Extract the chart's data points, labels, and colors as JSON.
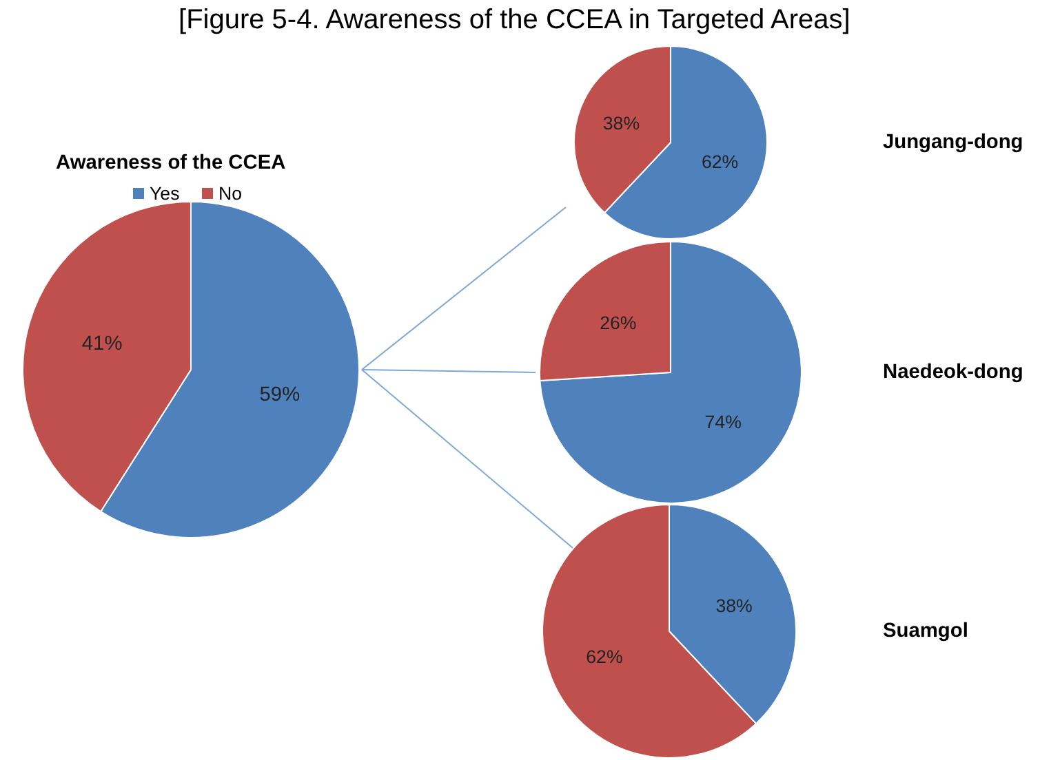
{
  "chart_data": [
    {
      "type": "pie",
      "title": "Awareness of the CCEA",
      "annotations": [
        "[Figure 5-4. Awareness of the CCEA in Targeted Areas]"
      ],
      "categories": [
        "Yes",
        "No"
      ],
      "values": [
        59,
        41
      ],
      "value_labels": [
        "59%",
        "41%"
      ],
      "colors": [
        "#4f81bd",
        "#c0504d"
      ],
      "legend": "top"
    },
    {
      "type": "pie",
      "title": "Jungang-dong",
      "categories": [
        null,
        null
      ],
      "values": [
        62,
        38
      ],
      "value_labels": [
        "62%",
        "38%"
      ],
      "colors": [
        "#4f81bd",
        "#c0504d"
      ]
    },
    {
      "type": "pie",
      "title": "Naedeok-dong",
      "categories": [
        null,
        null
      ],
      "values": [
        74,
        26
      ],
      "value_labels": [
        "74%",
        "26%"
      ],
      "colors": [
        "#4f81bd",
        "#c0504d"
      ]
    },
    {
      "type": "pie",
      "title": "Suamgol",
      "categories": [
        null,
        null
      ],
      "values": [
        38,
        62
      ],
      "value_labels": [
        "38%",
        "62%"
      ],
      "colors": [
        "#4f81bd",
        "#c0504d"
      ]
    }
  ]
}
